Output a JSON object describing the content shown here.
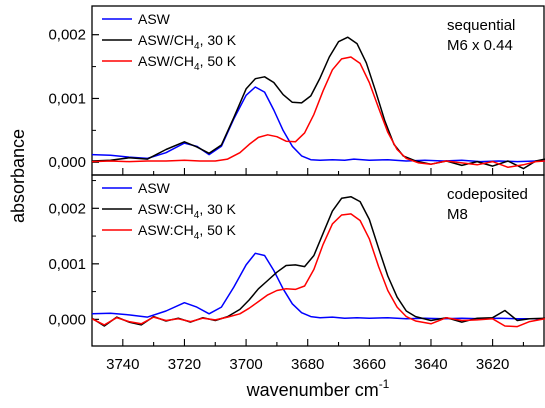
{
  "chart_data": {
    "type": "line",
    "ylabel": "absorbance",
    "xlabel": "wavenumber cm",
    "xlabel_sup": "-1",
    "xlim": [
      3750,
      3603
    ],
    "xticks": [
      "3740",
      "3720",
      "3700",
      "3680",
      "3660",
      "3640",
      "3620"
    ],
    "grid": false,
    "panels": [
      {
        "annotation": [
          "sequential",
          "M6 x 0.44"
        ],
        "ylim": [
          -0.0002,
          0.00245
        ],
        "yticks": [
          "0,000",
          "0,001",
          "0,002"
        ],
        "legend_position": "top-left",
        "series": [
          {
            "name": "ASW",
            "sub": "",
            "suffix": "",
            "color": "#0000ff",
            "x": [
              3750,
              3744,
              3738,
              3732,
              3726,
              3720,
              3716,
              3712,
              3708,
              3704,
              3700,
              3697,
              3694,
              3691,
              3688,
              3685,
              3682,
              3679,
              3676,
              3672,
              3668,
              3665,
              3660,
              3654,
              3648,
              3642,
              3636,
              3630,
              3624,
              3618,
              3612,
              3606,
              3603
            ],
            "y": [
              0.00012,
              0.00011,
              8e-05,
              6e-05,
              0.00015,
              0.0003,
              0.00025,
              0.00012,
              0.00025,
              0.00068,
              0.00105,
              0.00118,
              0.0011,
              0.00082,
              0.0005,
              0.00025,
              0.0001,
              4e-05,
              3e-05,
              4e-05,
              3e-05,
              5e-05,
              3e-05,
              4e-05,
              2e-05,
              3e-05,
              2e-05,
              3e-05,
              1e-05,
              2e-05,
              1e-05,
              2e-05,
              2e-05
            ]
          },
          {
            "name": "ASW/CH",
            "sub": "4",
            "suffix": ", 30 K",
            "color": "#000000",
            "x": [
              3750,
              3744,
              3738,
              3732,
              3726,
              3720,
              3716,
              3712,
              3708,
              3704,
              3700,
              3697,
              3694,
              3691,
              3688,
              3685,
              3682,
              3679,
              3676,
              3673,
              3670,
              3667,
              3664,
              3661,
              3658,
              3655,
              3652,
              3649,
              3645,
              3640,
              3635,
              3630,
              3625,
              3620,
              3615,
              3610,
              3606,
              3603
            ],
            "y": [
              2e-05,
              3e-05,
              7e-05,
              5e-05,
              0.0002,
              0.00032,
              0.00024,
              0.00014,
              0.00027,
              0.0007,
              0.00115,
              0.00131,
              0.00134,
              0.00125,
              0.00106,
              0.00094,
              0.00093,
              0.00104,
              0.00132,
              0.00165,
              0.00189,
              0.00196,
              0.00186,
              0.00156,
              0.00112,
              0.00065,
              0.00028,
              0.0001,
              2e-05,
              -3e-05,
              2e-05,
              -5e-05,
              1e-05,
              -6e-05,
              2e-05,
              -0.0001,
              2e-05,
              5e-05
            ]
          },
          {
            "name": "ASW/CH",
            "sub": "4",
            "suffix": ", 50 K",
            "color": "#ff0000",
            "x": [
              3750,
              3744,
              3738,
              3732,
              3726,
              3720,
              3715,
              3710,
              3706,
              3702,
              3699,
              3696,
              3693,
              3690,
              3687,
              3684,
              3681,
              3678,
              3675,
              3672,
              3669,
              3666,
              3663,
              3660,
              3657,
              3654,
              3651,
              3648,
              3644,
              3640,
              3635,
              3630,
              3625,
              3620,
              3615,
              3610,
              3606,
              3603
            ],
            "y": [
              1e-05,
              2e-05,
              1e-05,
              2e-05,
              2e-05,
              3e-05,
              2e-05,
              2e-05,
              5e-05,
              0.00015,
              0.00028,
              0.00039,
              0.00043,
              0.0004,
              0.00033,
              0.00032,
              0.00046,
              0.00075,
              0.00112,
              0.00145,
              0.00162,
              0.00165,
              0.00155,
              0.00125,
              0.00085,
              0.00047,
              0.0002,
              6e-05,
              -1e-05,
              -3e-05,
              2e-05,
              -1e-05,
              -4e-05,
              1e-05,
              -8e-05,
              -4e-05,
              1e-05,
              2e-05
            ]
          }
        ]
      },
      {
        "annotation": [
          "codeposited",
          "M8"
        ],
        "ylim": [
          -0.00048,
          0.0026
        ],
        "yticks": [
          "0,000",
          "0,001",
          "0,002"
        ],
        "legend_position": "top-left",
        "series": [
          {
            "name": "ASW",
            "sub": "",
            "suffix": "",
            "color": "#0000ff",
            "x": [
              3750,
              3744,
              3738,
              3732,
              3726,
              3720,
              3716,
              3712,
              3708,
              3704,
              3700,
              3697,
              3694,
              3691,
              3688,
              3685,
              3682,
              3679,
              3676,
              3672,
              3668,
              3664,
              3660,
              3654,
              3648,
              3642,
              3636,
              3630,
              3624,
              3618,
              3612,
              3606,
              3603
            ],
            "y": [
              0.0001,
              0.00011,
              8e-05,
              4e-05,
              0.00015,
              0.0003,
              0.00022,
              0.0001,
              0.00022,
              0.00058,
              0.00098,
              0.00119,
              0.00115,
              0.00088,
              0.00055,
              0.00028,
              0.00012,
              5e-05,
              3e-05,
              4e-05,
              2e-05,
              3e-05,
              2e-05,
              3e-05,
              1e-05,
              2e-05,
              1e-05,
              2e-05,
              1e-05,
              2e-05,
              1e-05,
              1e-05,
              1e-05
            ]
          },
          {
            "name": "ASW:CH",
            "sub": "4",
            "suffix": ", 30 K",
            "color": "#000000",
            "x": [
              3750,
              3746,
              3742,
              3738,
              3734,
              3730,
              3726,
              3722,
              3718,
              3714,
              3710,
              3706,
              3702,
              3699,
              3696,
              3693,
              3690,
              3687,
              3684,
              3681,
              3678,
              3675,
              3672,
              3669,
              3666,
              3663,
              3660,
              3657,
              3654,
              3651,
              3648,
              3645,
              3640,
              3635,
              3630,
              3625,
              3620,
              3616,
              3612,
              3608,
              3603
            ],
            "y": [
              2e-05,
              -0.00012,
              4e-05,
              -5e-05,
              -0.0001,
              5e-05,
              -3e-05,
              2e-05,
              -5e-05,
              3e-05,
              -2e-05,
              5e-05,
              0.00018,
              0.00035,
              0.00055,
              0.0007,
              0.00085,
              0.00097,
              0.00098,
              0.00095,
              0.00115,
              0.00155,
              0.00195,
              0.00218,
              0.00221,
              0.00212,
              0.0018,
              0.00128,
              0.00078,
              0.0004,
              0.00015,
              5e-05,
              -2e-05,
              3e-05,
              -5e-05,
              2e-05,
              3e-05,
              0.00016,
              -2e-05,
              1e-05,
              2e-05
            ]
          },
          {
            "name": "ASW:CH",
            "sub": "4",
            "suffix": ", 50 K",
            "color": "#ff0000",
            "x": [
              3750,
              3746,
              3742,
              3738,
              3734,
              3730,
              3726,
              3722,
              3718,
              3714,
              3710,
              3706,
              3702,
              3699,
              3696,
              3693,
              3690,
              3687,
              3684,
              3681,
              3678,
              3675,
              3672,
              3669,
              3666,
              3663,
              3660,
              3657,
              3654,
              3651,
              3648,
              3645,
              3640,
              3635,
              3630,
              3625,
              3620,
              3616,
              3612,
              3608,
              3603
            ],
            "y": [
              1e-05,
              -0.0001,
              3e-05,
              -4e-05,
              -8e-05,
              4e-05,
              -2e-05,
              1e-05,
              -4e-05,
              2e-05,
              -1e-05,
              4e-05,
              0.0001,
              0.0002,
              0.00032,
              0.00044,
              0.00052,
              0.00055,
              0.00054,
              0.0006,
              0.0009,
              0.00135,
              0.00172,
              0.00188,
              0.0019,
              0.00178,
              0.00145,
              0.00095,
              0.00052,
              0.00022,
              5e-05,
              -3e-05,
              -8e-05,
              3e-05,
              -2e-05,
              -1e-05,
              1e-05,
              -0.00012,
              -0.00013,
              -4e-05,
              1e-05
            ]
          }
        ]
      }
    ]
  }
}
